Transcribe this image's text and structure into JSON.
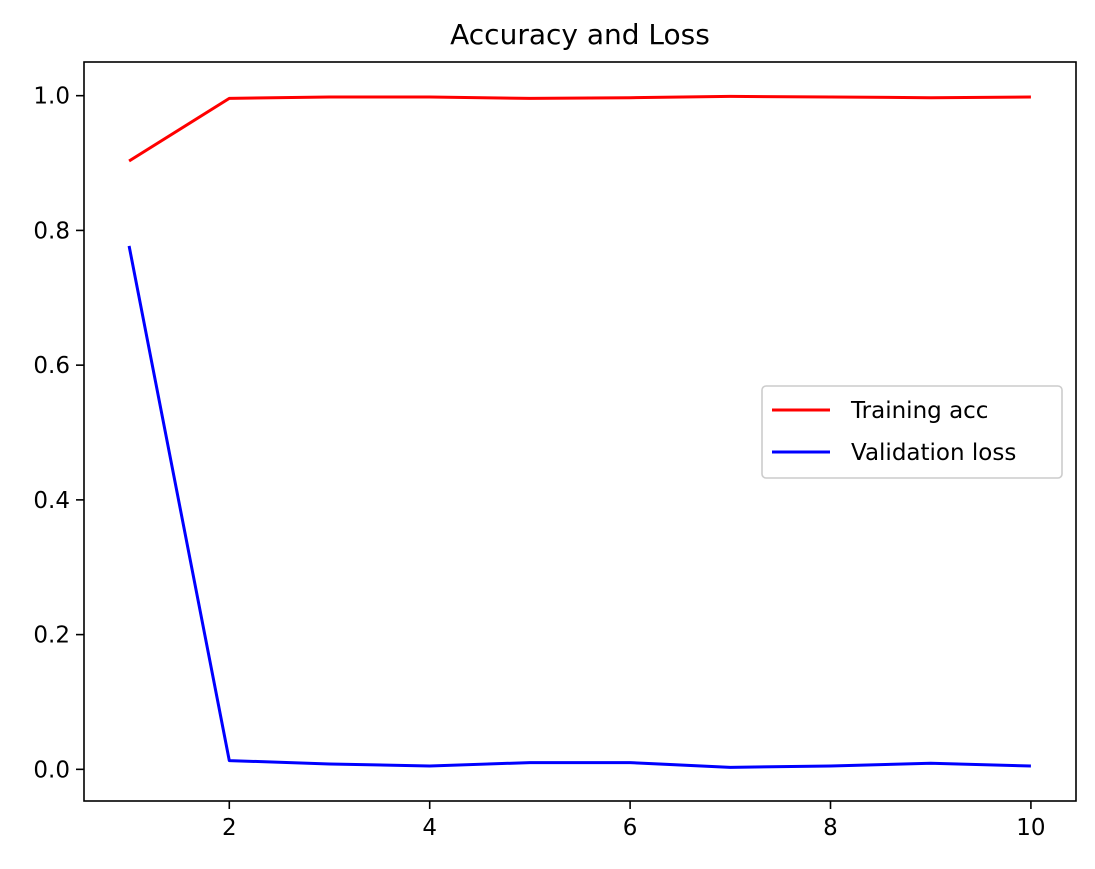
{
  "chart_data": {
    "type": "line",
    "title": "Accuracy and Loss",
    "xlabel": "",
    "ylabel": "",
    "x": [
      1,
      2,
      3,
      4,
      5,
      6,
      7,
      8,
      9,
      10
    ],
    "xlim": [
      0.55,
      10.45
    ],
    "ylim": [
      -0.047,
      1.05
    ],
    "x_ticks": [
      2,
      4,
      6,
      8,
      10
    ],
    "x_tick_labels": [
      "2",
      "4",
      "6",
      "8",
      "10"
    ],
    "y_ticks": [
      0.0,
      0.2,
      0.4,
      0.6,
      0.8,
      1.0
    ],
    "y_tick_labels": [
      "0.0",
      "0.2",
      "0.4",
      "0.6",
      "0.8",
      "1.0"
    ],
    "grid": false,
    "legend_position": "center-right",
    "series": [
      {
        "name": "Training acc",
        "color": "#ff0000",
        "values": [
          0.903,
          0.996,
          0.998,
          0.998,
          0.996,
          0.997,
          0.999,
          0.998,
          0.997,
          0.998
        ]
      },
      {
        "name": "Validation loss",
        "color": "#0000ff",
        "values": [
          0.777,
          0.013,
          0.008,
          0.005,
          0.01,
          0.01,
          0.003,
          0.005,
          0.009,
          0.005
        ]
      }
    ]
  }
}
